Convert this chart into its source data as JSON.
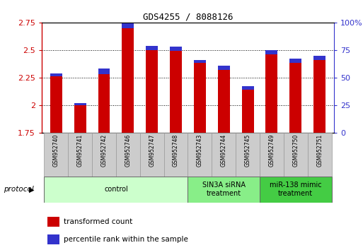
{
  "title": "GDS4255 / 8088126",
  "samples": [
    "GSM952740",
    "GSM952741",
    "GSM952742",
    "GSM952746",
    "GSM952747",
    "GSM952748",
    "GSM952743",
    "GSM952744",
    "GSM952745",
    "GSM952749",
    "GSM952750",
    "GSM952751"
  ],
  "transformed_count": [
    2.26,
    2.0,
    2.28,
    2.7,
    2.5,
    2.49,
    2.38,
    2.32,
    2.14,
    2.46,
    2.38,
    2.41
  ],
  "percentile_rank": [
    3,
    2,
    5,
    5,
    4,
    4,
    3,
    4,
    3,
    4,
    4,
    4
  ],
  "ylim_left": [
    1.75,
    2.75
  ],
  "ylim_right": [
    0,
    100
  ],
  "yticks_left": [
    1.75,
    2.0,
    2.25,
    2.5,
    2.75
  ],
  "yticks_right": [
    0,
    25,
    50,
    75,
    100
  ],
  "bar_color_red": "#cc0000",
  "bar_color_blue": "#3333cc",
  "protocol_label": "protocol",
  "legend_red": "transformed count",
  "legend_blue": "percentile rank within the sample",
  "bar_width": 0.5,
  "base_value": 1.75,
  "group_starts": [
    0,
    6,
    9
  ],
  "group_ends": [
    6,
    9,
    12
  ],
  "group_labels": [
    "control",
    "SIN3A siRNA\ntreatment",
    "miR-138 mimic\ntreatment"
  ],
  "group_colors": [
    "#ccffcc",
    "#88ee88",
    "#44cc44"
  ],
  "bg_white": "#ffffff",
  "grid_color": "#000000",
  "axis_label_color_left": "#cc0000",
  "axis_label_color_right": "#0000cc",
  "sample_box_color": "#cccccc",
  "sample_box_edge": "#888888"
}
